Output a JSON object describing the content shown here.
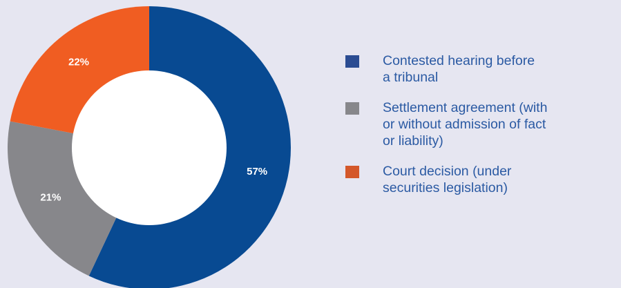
{
  "chart_data": {
    "type": "pie",
    "donut": true,
    "categories": [
      "Contested hearing before a tribunal",
      "Settlement agreement (with or without admission of fact or liability)",
      "Court decision (under securities legislation)"
    ],
    "values": [
      57,
      21,
      22
    ],
    "labels": [
      "57%",
      "21%",
      "22%"
    ],
    "colors": [
      "#084a92",
      "#87878b",
      "#f05d22"
    ],
    "legend_swatch_colors": [
      "#2b4c92",
      "#87878b",
      "#d4582a"
    ],
    "legend_placement": "right",
    "start": "top",
    "direction": "clockwise"
  },
  "legend": {
    "items": [
      {
        "label": "Contested hearing before\na tribunal"
      },
      {
        "label": "Settlement agreement (with\nor without admission of fact\nor liability)"
      },
      {
        "label": "Court decision (under\nsecurities legislation)"
      }
    ]
  },
  "colors": {
    "background": "#e6e6f1",
    "legend_text": "#2b5aa3",
    "donut_hole": "#ffffff"
  }
}
